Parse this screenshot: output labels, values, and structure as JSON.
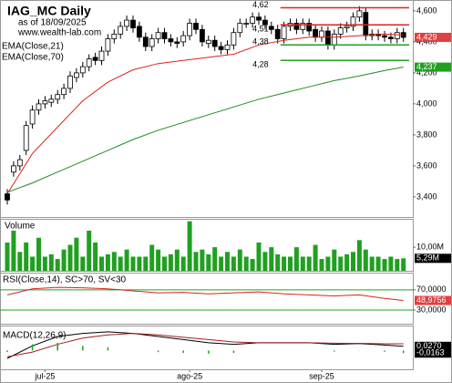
{
  "chart_data": [
    {
      "type": "candlestick",
      "title": "IAG_MC Daily",
      "subtitle": "as of 18/09/2025",
      "source": "www.wealth-lab.com",
      "open": [
        3420,
        3560,
        3600,
        3700,
        3870,
        3960,
        4000,
        4010,
        4030,
        4060,
        4100,
        4170,
        4200,
        4240,
        4300,
        4280,
        4340,
        4420,
        4450,
        4500,
        4540,
        4500,
        4430,
        4370,
        4420,
        4460,
        4420,
        4400,
        4400,
        4440,
        4520,
        4480,
        4390,
        4410,
        4370,
        4350,
        4380,
        4460,
        4520,
        4520,
        4560,
        4540,
        4500,
        4480,
        4420,
        4500,
        4520,
        4480,
        4520,
        4480,
        4430,
        4470,
        4380,
        4450,
        4490,
        4500,
        4560,
        4590,
        4440,
        4450,
        4440,
        4430,
        4420,
        4460
      ],
      "high": [
        3450,
        3630,
        3670,
        3890,
        3990,
        4030,
        4050,
        4060,
        4090,
        4130,
        4210,
        4230,
        4270,
        4320,
        4330,
        4370,
        4450,
        4480,
        4530,
        4570,
        4570,
        4530,
        4460,
        4450,
        4490,
        4490,
        4450,
        4430,
        4470,
        4550,
        4550,
        4510,
        4440,
        4440,
        4400,
        4410,
        4490,
        4550,
        4550,
        4590,
        4590,
        4570,
        4530,
        4510,
        4530,
        4550,
        4550,
        4550,
        4550,
        4510,
        4500,
        4500,
        4480,
        4520,
        4530,
        4590,
        4630,
        4620,
        4480,
        4480,
        4470,
        4460,
        4490,
        4490
      ],
      "low": [
        3350,
        3530,
        3570,
        3670,
        3840,
        3930,
        3970,
        3980,
        4000,
        4030,
        4070,
        4140,
        4170,
        4210,
        4250,
        4250,
        4310,
        4390,
        4420,
        4470,
        4460,
        4400,
        4340,
        4340,
        4390,
        4390,
        4370,
        4360,
        4370,
        4410,
        4450,
        4370,
        4360,
        4340,
        4320,
        4320,
        4350,
        4430,
        4490,
        4490,
        4510,
        4480,
        4450,
        4390,
        4390,
        4470,
        4450,
        4450,
        4440,
        4400,
        4400,
        4350,
        4350,
        4420,
        4460,
        4470,
        4530,
        4410,
        4410,
        4410,
        4400,
        4390,
        4390,
        4400
      ],
      "close": [
        3380,
        3600,
        3640,
        3860,
        3960,
        4000,
        4020,
        4030,
        4060,
        4100,
        4180,
        4200,
        4240,
        4290,
        4280,
        4340,
        4420,
        4450,
        4500,
        4540,
        4490,
        4430,
        4370,
        4420,
        4460,
        4420,
        4400,
        4390,
        4440,
        4520,
        4480,
        4400,
        4410,
        4370,
        4350,
        4380,
        4460,
        4520,
        4520,
        4560,
        4540,
        4510,
        4480,
        4420,
        4500,
        4520,
        4480,
        4520,
        4470,
        4430,
        4470,
        4380,
        4450,
        4490,
        4500,
        4560,
        4600,
        4440,
        4450,
        4440,
        4430,
        4420,
        4460,
        4429
      ],
      "close_label": "4,429",
      "series": [
        {
          "name": "EMA(Close,21)",
          "color": "#e02020",
          "x": [
            0,
            4,
            8,
            12,
            16,
            20,
            24,
            28,
            32,
            36,
            40,
            44,
            48,
            52,
            56,
            60,
            63
          ],
          "values": [
            3420,
            3680,
            3850,
            4020,
            4140,
            4220,
            4260,
            4280,
            4300,
            4320,
            4380,
            4410,
            4430,
            4430,
            4440,
            4450,
            4445
          ]
        },
        {
          "name": "EMA(Close,70)",
          "color": "#208a20",
          "x": [
            0,
            4,
            8,
            12,
            16,
            20,
            24,
            28,
            32,
            36,
            40,
            44,
            48,
            52,
            56,
            60,
            63
          ],
          "values": [
            3430,
            3490,
            3560,
            3630,
            3700,
            3770,
            3830,
            3880,
            3930,
            3980,
            4030,
            4070,
            4110,
            4150,
            4180,
            4215,
            4237
          ],
          "last_label": "4,237"
        }
      ],
      "levels": [
        {
          "value": 4620,
          "label": "4,62",
          "color": "#e02020",
          "start": 43
        },
        {
          "value": 4510,
          "label": "4,51",
          "color": "#e02020",
          "start": 43
        },
        {
          "value": 4380,
          "label": "4,38",
          "color": "#20a020",
          "start": 43
        },
        {
          "value": 4280,
          "label": "4,28",
          "color": "#20a020",
          "start": 43
        }
      ],
      "ylim": [
        3270,
        4670
      ],
      "yticks": [
        {
          "value": 3400,
          "label": "3,400"
        },
        {
          "value": 3600,
          "label": "3,600"
        },
        {
          "value": 3800,
          "label": "3,800"
        },
        {
          "value": 4000,
          "label": "4,000"
        },
        {
          "value": 4200,
          "label": "4,200"
        },
        {
          "value": 4400,
          "label": "4,400"
        },
        {
          "value": 4600,
          "label": "4,600"
        }
      ],
      "xticks": [
        {
          "value": 6,
          "label": "jul-25"
        },
        {
          "value": 29,
          "label": "ago-25"
        },
        {
          "value": 50,
          "label": "sep-25"
        }
      ]
    },
    {
      "type": "bar",
      "title": "Volume",
      "color": "#20a020",
      "values": [
        12,
        17,
        8,
        12,
        6,
        14,
        6,
        7,
        5,
        9,
        11,
        14,
        6,
        17,
        12,
        6,
        7,
        8,
        6,
        9,
        6,
        6,
        6,
        11,
        9,
        6,
        7,
        9,
        6,
        21,
        8,
        9,
        7,
        10,
        6,
        8,
        6,
        9,
        6,
        5,
        12,
        8,
        10,
        7,
        6,
        6,
        10,
        6,
        6,
        11,
        5,
        6,
        9,
        6,
        7,
        8,
        13,
        9,
        6,
        6,
        5,
        6,
        5,
        5.29
      ],
      "last_label": "5,29M",
      "ylim": [
        0,
        22
      ],
      "yticks": [
        {
          "value": 10,
          "label": "10,00M"
        }
      ]
    },
    {
      "type": "line",
      "title": "RSI(Close,14), SC>70, SV<30",
      "series": [
        {
          "name": "RSI",
          "color": "#e02020",
          "x": [
            0,
            4,
            8,
            12,
            16,
            20,
            24,
            28,
            32,
            36,
            40,
            44,
            48,
            52,
            56,
            60,
            63
          ],
          "values": [
            60,
            72,
            75,
            74,
            72,
            68,
            64,
            65,
            62,
            64,
            66,
            62,
            60,
            58,
            60,
            53,
            48.9756
          ],
          "last_label": "48,9756"
        }
      ],
      "ylim": [
        3,
        104
      ],
      "yticks": [
        {
          "value": 30,
          "label": "30,0000"
        },
        {
          "value": 70,
          "label": "70,0000"
        }
      ]
    },
    {
      "type": "line",
      "title": "MACD(12,26,9)",
      "series": [
        {
          "name": "MACD",
          "color": "#000000",
          "x": [
            0,
            4,
            8,
            12,
            16,
            20,
            24,
            28,
            32,
            36,
            40,
            44,
            48,
            52,
            56,
            60,
            63
          ],
          "values": [
            -0.05,
            0.03,
            0.09,
            0.11,
            0.12,
            0.11,
            0.09,
            0.07,
            0.05,
            0.04,
            0.05,
            0.05,
            0.05,
            0.04,
            0.045,
            0.035,
            0.027
          ],
          "last_label": "0,0270"
        },
        {
          "name": "Signal",
          "color": "#a02020",
          "x": [
            0,
            4,
            8,
            12,
            16,
            20,
            24,
            28,
            32,
            36,
            40,
            44,
            48,
            52,
            56,
            60,
            63
          ],
          "values": [
            -0.04,
            -0.01,
            0.04,
            0.08,
            0.1,
            0.11,
            0.1,
            0.085,
            0.07,
            0.055,
            0.05,
            0.05,
            0.05,
            0.047,
            0.046,
            0.043,
            0.0433
          ]
        },
        {
          "name": "Histogram",
          "type": "bar",
          "color": "#20a020",
          "x": [
            0,
            4,
            8,
            12,
            16,
            20,
            24,
            28,
            32,
            36,
            40,
            44,
            48,
            52,
            56,
            60,
            63
          ],
          "values": [
            -0.01,
            0.04,
            0.05,
            0.03,
            0.02,
            0,
            -0.01,
            -0.015,
            -0.02,
            -0.015,
            0,
            0,
            0,
            -0.007,
            -0.001,
            -0.008,
            -0.0163
          ],
          "last_label": "-0,0163"
        }
      ],
      "ylim": [
        -0.12,
        0.16
      ]
    }
  ]
}
